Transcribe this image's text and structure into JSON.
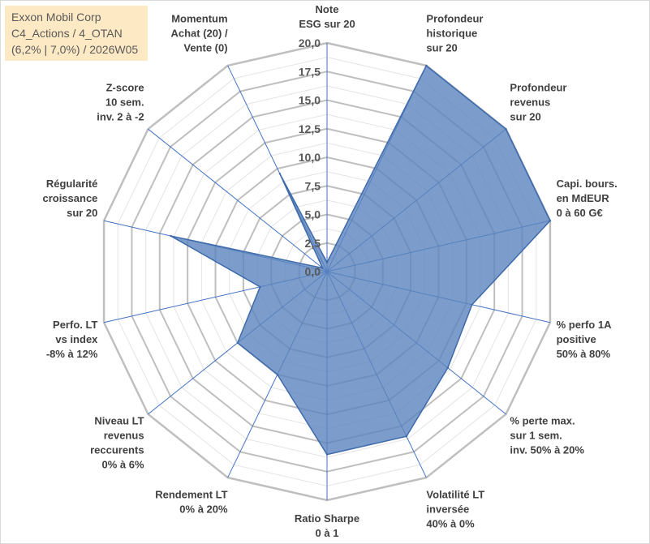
{
  "title_box": {
    "line1": "Exxon Mobil Corp",
    "line2": "C4_Actions / 4_OTAN",
    "line3": "(6,2% | 7,0%) / 2026W05"
  },
  "chart_data": {
    "type": "radar",
    "title": "",
    "rmin": 0,
    "rmax": 20,
    "ticks": [
      0,
      2.5,
      5,
      7.5,
      10,
      12.5,
      15,
      17.5,
      20
    ],
    "tick_labels": [
      "0,0",
      "2,5",
      "5,0",
      "7,5",
      "10,0",
      "12,5",
      "15,0",
      "17,5",
      "20,0"
    ],
    "grid_rings": 16,
    "categories": [
      [
        "Note",
        "ESG sur 20"
      ],
      [
        "Profondeur",
        "historique",
        "sur 20"
      ],
      [
        "Profondeur",
        "revenus",
        "sur 20"
      ],
      [
        "Capi. bours.",
        "en MdEUR",
        "0 à 60 G€"
      ],
      [
        "% perfo 1A",
        "positive",
        "50% à 80%"
      ],
      [
        "% perte max.",
        "sur 1 sem.",
        "inv. 50% à 20%"
      ],
      [
        "Volatilité LT",
        "inversée",
        "40% à 0%"
      ],
      [
        "Ratio Sharpe",
        "0 à 1"
      ],
      [
        "Rendement LT",
        "0% à 20%"
      ],
      [
        "Niveau LT",
        "revenus",
        "reccurents",
        "0% à 6%"
      ],
      [
        "Perfo. LT",
        "vs index",
        "-8% à 12%"
      ],
      [
        "Régularité",
        "croissance",
        "sur 20"
      ],
      [
        "Z-score",
        "10 sem.",
        "inv. 2 à -2"
      ],
      [
        "Momentum",
        "Achat (20) /",
        "Vente (0)"
      ]
    ],
    "values": [
      0.8,
      20,
      20,
      20,
      13,
      13.5,
      16,
      16,
      10,
      10,
      6,
      14,
      0.5,
      9.5
    ],
    "colors": {
      "fill": "#5b84be",
      "fill_opacity": 0.8,
      "stroke": "#3d6aab",
      "grid": "#bfbfbf",
      "grid_minor": "#e3e3e3",
      "spoke": "#4472c4"
    }
  }
}
